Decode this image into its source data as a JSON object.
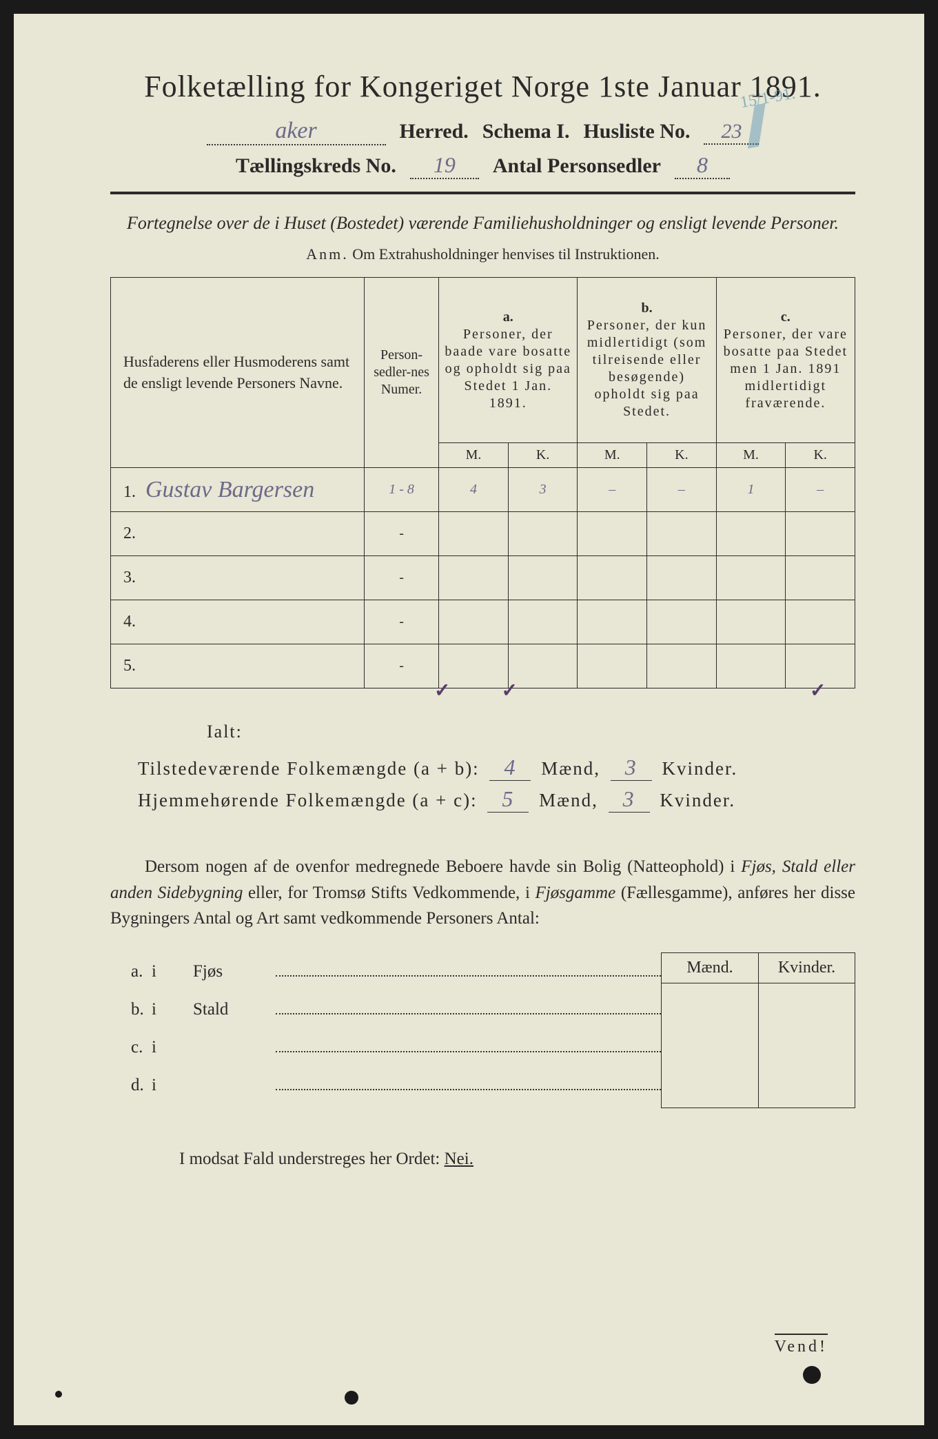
{
  "title": "Folketælling for Kongeriget Norge 1ste Januar 1891.",
  "header": {
    "herred_value": "aker",
    "herred_label": "Herred.",
    "schema_label": "Schema I.",
    "husliste_label": "Husliste No.",
    "husliste_value": "23",
    "kreds_label": "Tællingskreds No.",
    "kreds_value": "19",
    "antal_label": "Antal Personsedler",
    "antal_value": "8",
    "crayon_date": "15/1-91."
  },
  "subtitle": "Fortegnelse over de i Huset (Bostedet) værende Familiehusholdninger og ensligt levende Personer.",
  "anm_label": "Anm.",
  "anm_text": "Om Extrahusholdninger henvises til Instruktionen.",
  "table_headers": {
    "names": "Husfaderens eller Husmoderens samt de ensligt levende Personers Navne.",
    "numer": "Person-sedler-nes Numer.",
    "a_label": "a.",
    "a_text": "Personer, der baade vare bosatte og opholdt sig paa Stedet 1 Jan. 1891.",
    "b_label": "b.",
    "b_text": "Personer, der kun midlertidigt (som tilreisende eller besøgende) opholdt sig paa Stedet.",
    "c_label": "c.",
    "c_text": "Personer, der vare bosatte paa Stedet men 1 Jan. 1891 midlertidigt fraværende.",
    "M": "M.",
    "K": "K."
  },
  "rows": [
    {
      "n": "1.",
      "name": "Gustav Bargersen",
      "num": "1 - 8",
      "aM": "4",
      "aK": "3",
      "bM": "–",
      "bK": "–",
      "cM": "1",
      "cK": "–"
    },
    {
      "n": "2.",
      "name": "",
      "num": "-",
      "aM": "",
      "aK": "",
      "bM": "",
      "bK": "",
      "cM": "",
      "cK": ""
    },
    {
      "n": "3.",
      "name": "",
      "num": "-",
      "aM": "",
      "aK": "",
      "bM": "",
      "bK": "",
      "cM": "",
      "cK": ""
    },
    {
      "n": "4.",
      "name": "",
      "num": "-",
      "aM": "",
      "aK": "",
      "bM": "",
      "bK": "",
      "cM": "",
      "cK": ""
    },
    {
      "n": "5.",
      "name": "",
      "num": "-",
      "aM": "",
      "aK": "",
      "bM": "",
      "bK": "",
      "cM": "",
      "cK": ""
    }
  ],
  "checkmarks": {
    "aM": "✓",
    "aK": "✓",
    "cK": "✓"
  },
  "ialt_label": "Ialt:",
  "totals": {
    "line1_label": "Tilstedeværende Folkemængde (a + b):",
    "line1_m": "4",
    "line1_k": "3",
    "line2_label": "Hjemmehørende Folkemængde (a + c):",
    "line2_m": "5",
    "line2_k": "3",
    "maend": "Mænd,",
    "kvinder": "Kvinder."
  },
  "para_text_1": "Dersom nogen af de ovenfor medregnede Beboere havde sin Bolig (Natteophold) i ",
  "para_it_1": "Fjøs, Stald eller anden Sidebygning",
  "para_text_2": " eller, for Tromsø Stifts Vedkommende, i ",
  "para_it_2": "Fjøsgamme",
  "para_text_3": " (Fællesgamme), anføres her disse Bygningers Antal og Art samt vedkommende Personers Antal:",
  "side": {
    "maend": "Mænd.",
    "kvinder": "Kvinder.",
    "rows": [
      {
        "lbl": "a.",
        "i": "i",
        "name": "Fjøs"
      },
      {
        "lbl": "b.",
        "i": "i",
        "name": "Stald"
      },
      {
        "lbl": "c.",
        "i": "i",
        "name": ""
      },
      {
        "lbl": "d.",
        "i": "i",
        "name": ""
      }
    ]
  },
  "nei_line_1": "I modsat Fald understreges her Ordet: ",
  "nei_word": "Nei.",
  "vend": "Vend!",
  "colors": {
    "paper": "#e8e6d4",
    "ink": "#2a2a2a",
    "handwriting": "#6a6a8a",
    "crayon": "#4a8ab5",
    "checkmark": "#5a3a6a"
  }
}
